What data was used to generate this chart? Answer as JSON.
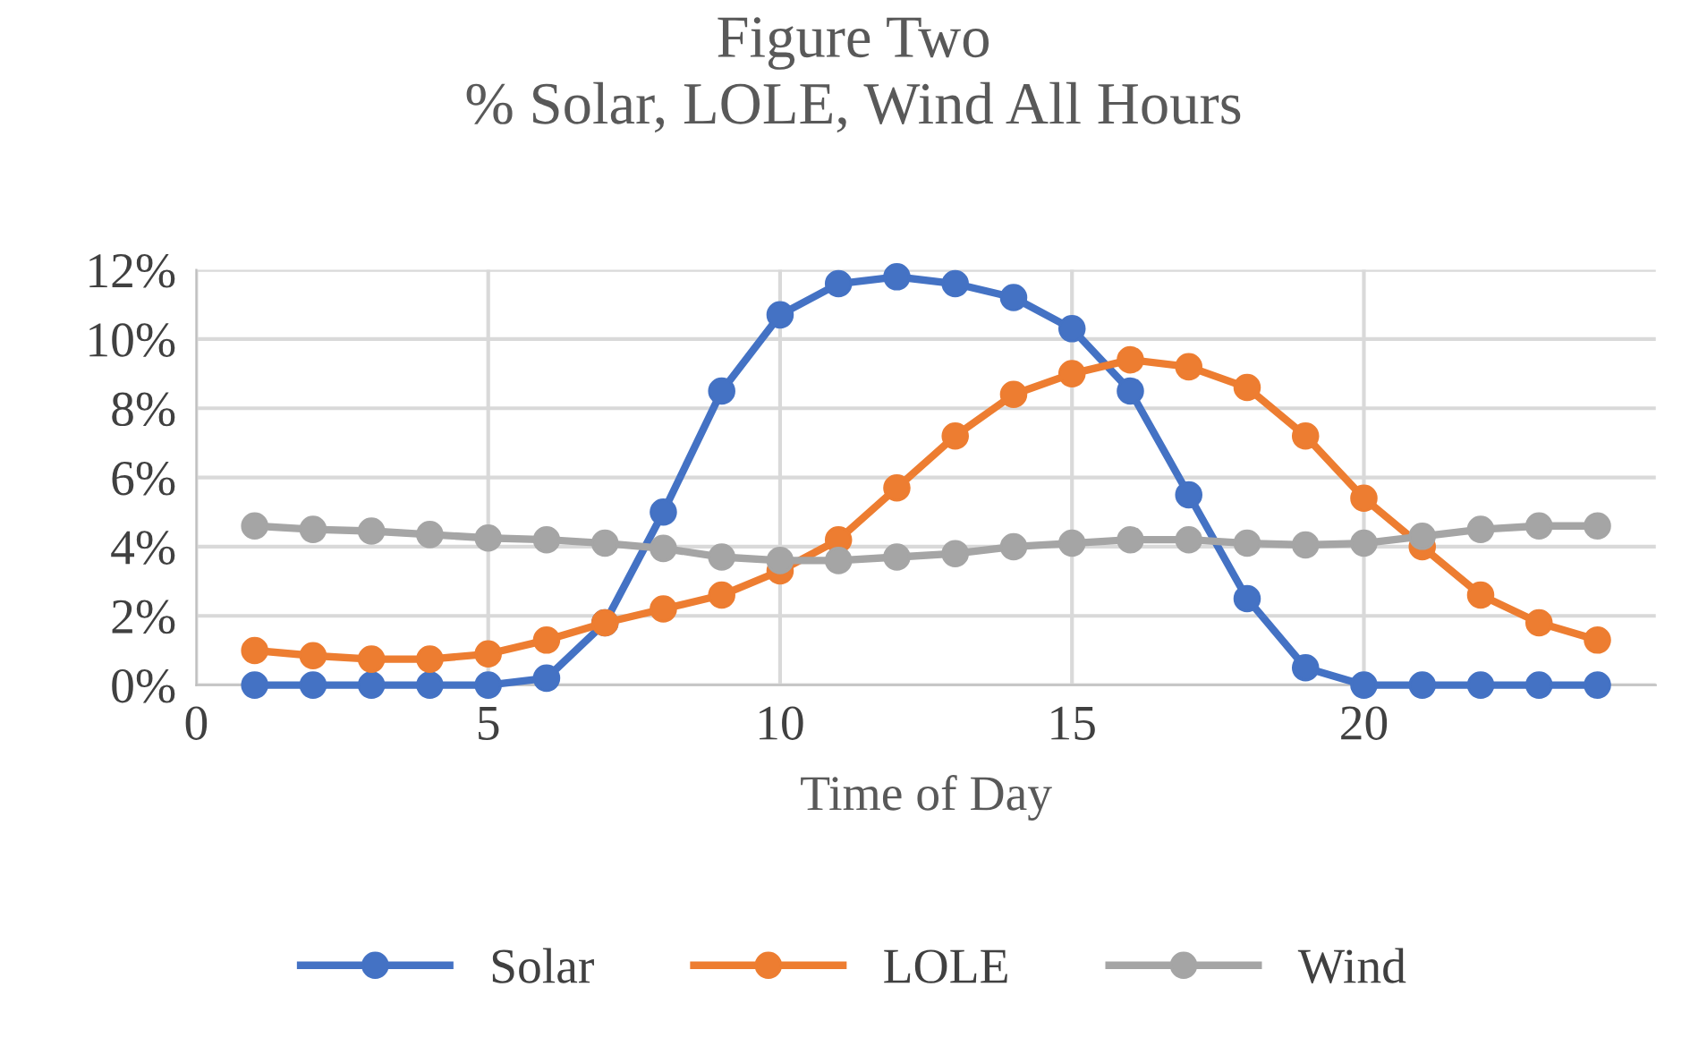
{
  "chart_data": {
    "type": "line",
    "title": "Figure Two\n% Solar, LOLE, Wind All Hours",
    "xlabel": "Time of Day",
    "x": [
      1,
      2,
      3,
      4,
      5,
      6,
      7,
      8,
      9,
      10,
      11,
      12,
      13,
      14,
      15,
      16,
      17,
      18,
      19,
      20,
      21,
      22,
      23,
      24
    ],
    "series": [
      {
        "name": "Solar",
        "color": "#4472c4",
        "values": [
          0,
          0,
          0,
          0,
          0,
          0.2,
          1.8,
          5.0,
          8.5,
          10.7,
          11.6,
          11.8,
          11.6,
          11.2,
          10.3,
          8.5,
          5.5,
          2.5,
          0.5,
          0,
          0,
          0,
          0,
          0
        ]
      },
      {
        "name": "LOLE",
        "color": "#ed7d31",
        "values": [
          1.0,
          0.85,
          0.75,
          0.75,
          0.9,
          1.3,
          1.8,
          2.2,
          2.6,
          3.3,
          4.2,
          5.7,
          7.2,
          8.4,
          9.0,
          9.4,
          9.2,
          8.6,
          7.2,
          5.4,
          4.0,
          2.6,
          1.8,
          1.3
        ]
      },
      {
        "name": "Wind",
        "color": "#a5a5a5",
        "values": [
          4.6,
          4.5,
          4.45,
          4.35,
          4.25,
          4.2,
          4.1,
          3.95,
          3.7,
          3.6,
          3.6,
          3.7,
          3.8,
          4.0,
          4.1,
          4.2,
          4.2,
          4.1,
          4.05,
          4.1,
          4.3,
          4.5,
          4.6,
          4.6
        ]
      }
    ],
    "xlim": [
      0,
      25
    ],
    "xticks": [
      0,
      5,
      10,
      15,
      20
    ],
    "ylim": [
      0,
      12
    ],
    "yticks": [
      {
        "value": 0,
        "label": "0%"
      },
      {
        "value": 2,
        "label": "2%"
      },
      {
        "value": 4,
        "label": "4%"
      },
      {
        "value": 6,
        "label": "6%"
      },
      {
        "value": 8,
        "label": "8%"
      },
      {
        "value": 10,
        "label": "10%"
      },
      {
        "value": 12,
        "label": "12%"
      }
    ],
    "grid": true,
    "legend": "bottom",
    "marker": "circle",
    "line_style": "solid"
  }
}
